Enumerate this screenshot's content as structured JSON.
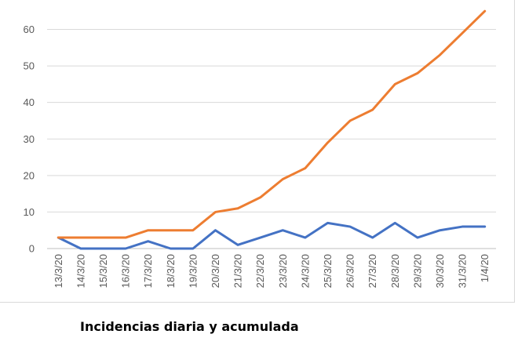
{
  "caption": "Incidencias diaria y acumulada",
  "chart_data": {
    "type": "line",
    "categories": [
      "13/3/20",
      "14/3/20",
      "15/3/20",
      "16/3/20",
      "17/3/20",
      "18/3/20",
      "19/3/20",
      "20/3/20",
      "21/3/20",
      "22/3/20",
      "23/3/20",
      "24/3/20",
      "25/3/20",
      "26/3/20",
      "27/3/20",
      "28/3/20",
      "29/3/20",
      "30/3/20",
      "31/3/20",
      "1/4/20"
    ],
    "series": [
      {
        "values": [
          3,
          0,
          0,
          0,
          2,
          0,
          0,
          5,
          1,
          3,
          5,
          3,
          7,
          6,
          3,
          7,
          3,
          5,
          6,
          6
        ],
        "color": "#4472c4"
      },
      {
        "values": [
          3,
          3,
          3,
          3,
          5,
          5,
          5,
          10,
          11,
          14,
          19,
          22,
          29,
          35,
          38,
          45,
          48,
          53,
          59,
          65
        ],
        "color": "#ed7d31"
      }
    ],
    "yticks": [
      0,
      10,
      20,
      30,
      40,
      50,
      60
    ],
    "ylim": [
      0,
      70
    ],
    "grid": true,
    "legend": "none"
  }
}
